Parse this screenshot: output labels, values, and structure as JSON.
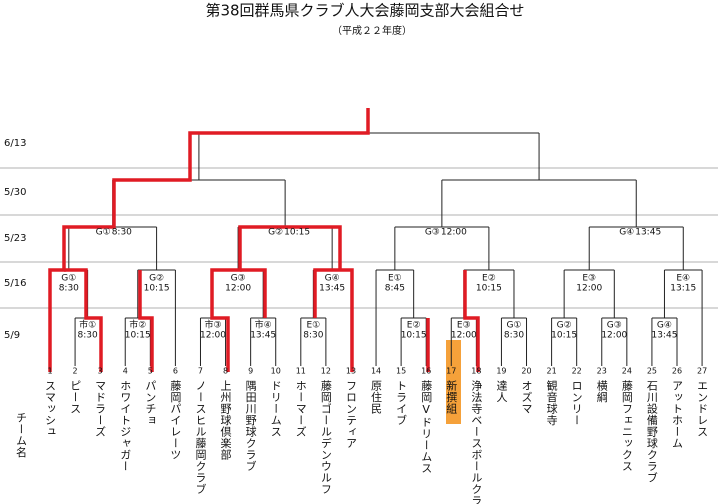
{
  "header": {
    "title": "第38回群馬県クラブ人大会藤岡支部大会組合せ",
    "subtitle": "（平成２２年度）"
  },
  "dates": [
    "6/13",
    "5/30",
    "5/23",
    "5/16",
    "5/9"
  ],
  "team_header": "チーム名",
  "teams": [
    {
      "number": 1,
      "name": "スマッシュ"
    },
    {
      "number": 2,
      "name": "ピース"
    },
    {
      "number": 3,
      "name": "マドラーズ"
    },
    {
      "number": 4,
      "name": "ホワイトジャガー"
    },
    {
      "number": 5,
      "name": "パンチョ"
    },
    {
      "number": 6,
      "name": "藤岡パイレーツ"
    },
    {
      "number": 7,
      "name": "ノースヒル藤岡クラブ"
    },
    {
      "number": 8,
      "name": "上州野球倶楽部"
    },
    {
      "number": 9,
      "name": "隅田川野球クラブ"
    },
    {
      "number": 10,
      "name": "ドリームス"
    },
    {
      "number": 11,
      "name": "ホーマーズ"
    },
    {
      "number": 12,
      "name": "藤岡ゴールデンウルフ"
    },
    {
      "number": 13,
      "name": "フロンティア"
    },
    {
      "number": 14,
      "name": "原住民"
    },
    {
      "number": 15,
      "name": "トライブ"
    },
    {
      "number": 16,
      "name": "藤岡Vドリームス"
    },
    {
      "number": 17,
      "name": "新撰組"
    },
    {
      "number": 18,
      "name": "浄法寺ベースボールクラブ"
    },
    {
      "number": 19,
      "name": "達人"
    },
    {
      "number": 20,
      "name": "オズマ"
    },
    {
      "number": 21,
      "name": "観音球寺"
    },
    {
      "number": 22,
      "name": "ロンリー"
    },
    {
      "number": 23,
      "name": "横綱"
    },
    {
      "number": 24,
      "name": "藤岡フェニックス"
    },
    {
      "number": 25,
      "name": "石川設備野球クラブ"
    },
    {
      "number": 26,
      "name": "アットホーム"
    },
    {
      "number": 27,
      "name": "エンドレス"
    }
  ],
  "matches": {
    "round1": [
      {
        "label": "市①",
        "time": "8:30"
      },
      {
        "label": "市②",
        "time": "10:15"
      },
      {
        "label": "市③",
        "time": "12:00"
      },
      {
        "label": "市④",
        "time": "13:45"
      },
      {
        "label": "E①",
        "time": "8:30"
      },
      {
        "label": "E②",
        "time": "10:15"
      },
      {
        "label": "E③",
        "time": "12:00"
      },
      {
        "label": "G①",
        "time": "8:30"
      },
      {
        "label": "G②",
        "time": "10:15"
      },
      {
        "label": "G③",
        "time": "12:00"
      },
      {
        "label": "G④",
        "time": "13:45"
      }
    ],
    "round2": [
      {
        "label": "G①",
        "time": "8:30"
      },
      {
        "label": "G②",
        "time": "10:15"
      },
      {
        "label": "G③",
        "time": "12:00"
      },
      {
        "label": "G④",
        "time": "13:45"
      },
      {
        "label": "E①",
        "time": "8:45"
      },
      {
        "label": "E②",
        "time": "10:15"
      },
      {
        "label": "E③",
        "time": "12:00"
      },
      {
        "label": "E④",
        "time": "13:15"
      }
    ],
    "round3": [
      {
        "label": "G①",
        "time": "8:30"
      },
      {
        "label": "G②",
        "time": "10:15"
      },
      {
        "label": "G③",
        "time": "12:00"
      },
      {
        "label": "G④",
        "time": "13:45"
      }
    ]
  }
}
